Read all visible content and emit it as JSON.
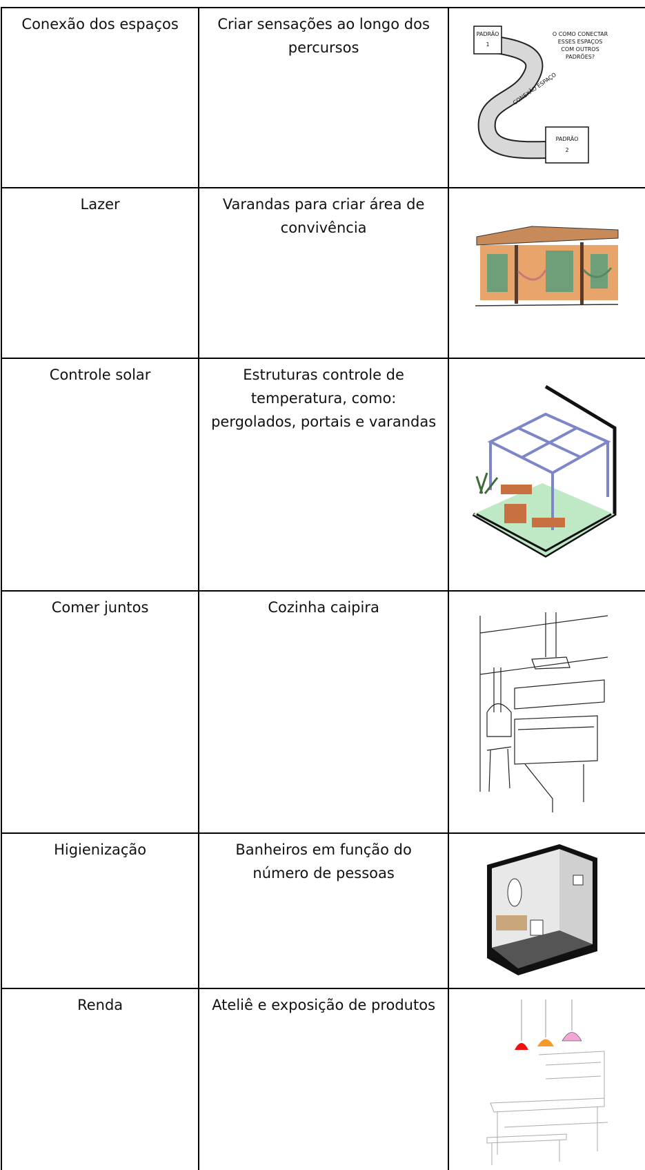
{
  "table": {
    "rows": [
      {
        "need": "Conexão dos espaços",
        "solution": "Criar sensações ao longo dos percursos",
        "sketch_labels": [
          "PADRÃO",
          "1",
          "PADRÃO",
          "2",
          "CONEXÃO ESPAÇO",
          "O COMO CONECTAR",
          "ESSES ESPAÇOS",
          "COM OUTROS",
          "PADRÕES?"
        ]
      },
      {
        "need": "Lazer",
        "solution": "Varandas para criar área de convivência"
      },
      {
        "need": "Controle solar",
        "solution": "Estruturas controle de temperatura, como: pergolados, portais e varandas"
      },
      {
        "need": "Comer juntos",
        "solution": "Cozinha caipira"
      },
      {
        "need": "Higienização",
        "solution": "Banheiros em função do número de pessoas"
      },
      {
        "need": "Renda",
        "solution": "Ateliê e exposição de produtos"
      }
    ]
  }
}
